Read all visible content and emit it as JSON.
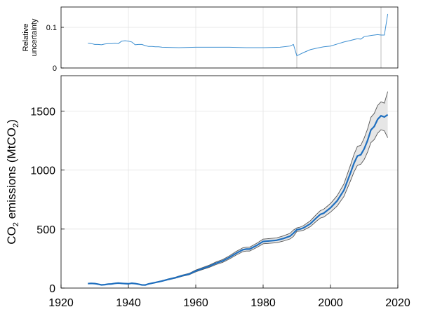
{
  "chart_data": [
    {
      "type": "line",
      "ylabel_lines": [
        "Relative",
        "uncertainty"
      ],
      "xlim": [
        1920,
        2020
      ],
      "ylim": [
        0,
        0.15
      ],
      "yticks": [
        0,
        0.1
      ],
      "ytick_labels": [
        "0",
        "0.1"
      ],
      "grid": true,
      "reference_lines_x": [
        1990,
        2015
      ],
      "series": [
        {
          "x": [
            1928,
            1929,
            1930,
            1931,
            1932,
            1933,
            1934,
            1935,
            1936,
            1937,
            1938,
            1939,
            1940,
            1941,
            1942,
            1943,
            1944,
            1945,
            1946,
            1947,
            1948,
            1949,
            1950,
            1955,
            1960,
            1965,
            1970,
            1975,
            1980,
            1985,
            1988,
            1989,
            1990,
            1991,
            1992,
            1994,
            1996,
            1998,
            2000,
            2002,
            2004,
            2006,
            2008,
            2009,
            2010,
            2012,
            2014,
            2015,
            2016,
            2017
          ],
          "y": [
            0.061,
            0.06,
            0.058,
            0.058,
            0.057,
            0.059,
            0.06,
            0.06,
            0.061,
            0.06,
            0.066,
            0.067,
            0.066,
            0.064,
            0.057,
            0.058,
            0.058,
            0.055,
            0.053,
            0.053,
            0.052,
            0.052,
            0.051,
            0.05,
            0.051,
            0.051,
            0.051,
            0.05,
            0.05,
            0.051,
            0.054,
            0.058,
            0.03,
            0.034,
            0.038,
            0.045,
            0.049,
            0.052,
            0.054,
            0.059,
            0.064,
            0.068,
            0.072,
            0.071,
            0.077,
            0.08,
            0.082,
            0.081,
            0.081,
            0.133
          ],
          "color": "#3d8fd1"
        }
      ]
    },
    {
      "type": "line",
      "ylabel": "CO2 emissions (MtCO2)",
      "ylabel_parts": {
        "pre": "CO",
        "sub1": "2",
        "mid": " emissions (MtCO",
        "sub2": "2",
        "post": ")"
      },
      "xlim": [
        1920,
        2020
      ],
      "ylim": [
        0,
        1800
      ],
      "xticks": [
        1920,
        1940,
        1960,
        1980,
        2000,
        2020
      ],
      "xtick_labels": [
        "1920",
        "1940",
        "1960",
        "1980",
        "2000",
        "2020"
      ],
      "yticks": [
        0,
        500,
        1000,
        1500
      ],
      "ytick_labels": [
        "0",
        "500",
        "1000",
        "1500"
      ],
      "grid": true,
      "uncertainty_band": true,
      "series": [
        {
          "x": [
            1928,
            1929,
            1930,
            1931,
            1932,
            1933,
            1934,
            1935,
            1936,
            1937,
            1938,
            1939,
            1940,
            1941,
            1942,
            1943,
            1944,
            1945,
            1946,
            1948,
            1950,
            1952,
            1954,
            1956,
            1958,
            1960,
            1962,
            1964,
            1966,
            1968,
            1970,
            1972,
            1974,
            1975,
            1976,
            1978,
            1980,
            1982,
            1984,
            1986,
            1988,
            1989,
            1990,
            1991,
            1992,
            1994,
            1996,
            1997,
            1998,
            2000,
            2002,
            2004,
            2006,
            2007,
            2008,
            2009,
            2010,
            2011,
            2012,
            2013,
            2014,
            2015,
            2016,
            2017
          ],
          "y": [
            38,
            40,
            38,
            33,
            27,
            29,
            33,
            35,
            40,
            42,
            40,
            38,
            36,
            41,
            38,
            33,
            27,
            26,
            35,
            47,
            60,
            75,
            88,
            105,
            118,
            145,
            165,
            185,
            210,
            230,
            260,
            295,
            325,
            330,
            330,
            360,
            395,
            400,
            405,
            420,
            440,
            465,
            495,
            500,
            510,
            545,
            600,
            625,
            635,
            680,
            740,
            830,
            980,
            1060,
            1120,
            1130,
            1180,
            1250,
            1340,
            1370,
            1430,
            1460,
            1450,
            1470
          ],
          "color": "#1f6fbf"
        }
      ]
    }
  ]
}
